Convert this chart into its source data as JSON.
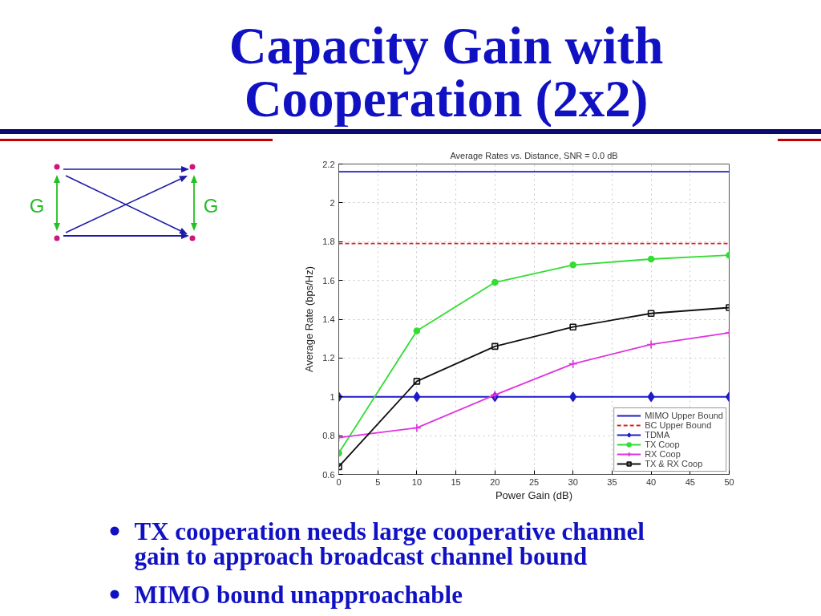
{
  "chart_data": {
    "type": "line",
    "title": "Capacity Gain with Cooperation (2x2)",
    "subtitle": "Average Rates vs. Distance, SNR = 0.0 dB",
    "xlabel": "Power Gain (dB)",
    "ylabel": "Average Rate (bps/Hz)",
    "x": [
      0,
      10,
      20,
      30,
      40,
      50
    ],
    "series": [
      {
        "name": "MIMO Upper Bound",
        "color": "#1c1cc8",
        "values": [
          2.16,
          2.16,
          2.16,
          2.16,
          2.16,
          2.16
        ],
        "marker": "none"
      },
      {
        "name": "BC Upper Bound",
        "color": "#e02020",
        "values": [
          1.79,
          1.79,
          1.79,
          1.79,
          1.79,
          1.79
        ],
        "marker": "none",
        "line_style": "dashed"
      },
      {
        "name": "TDMA",
        "color": "#1c1cc8",
        "values": [
          1,
          1,
          1,
          1,
          1,
          1
        ],
        "marker": "diamond"
      },
      {
        "name": "TX Coop",
        "color": "#33dd33",
        "values": [
          0.71,
          1.34,
          1.59,
          1.68,
          1.71,
          1.73
        ],
        "marker": "circle"
      },
      {
        "name": "RX Coop",
        "color": "#e033e0",
        "values": [
          0.79,
          0.84,
          1.01,
          1.17,
          1.27,
          1.33
        ],
        "marker": "cross"
      },
      {
        "name": "TX & RX Coop",
        "color": "#111111",
        "values": [
          0.64,
          1.08,
          1.26,
          1.36,
          1.43,
          1.46
        ],
        "marker": "square"
      }
    ],
    "xlim": [
      0,
      50
    ],
    "xticks": [
      0,
      5,
      10,
      15,
      20,
      25,
      30,
      35,
      40,
      45,
      50
    ],
    "ylim": [
      0.6,
      2.2
    ],
    "yticks": [
      0.6,
      0.8,
      1,
      1.2,
      1.4,
      1.6,
      1.8,
      2,
      2.2
    ],
    "grid": true,
    "legend": "bottom right",
    "line_style": "solid",
    "annotations": [
      "TX cooperation needs large cooperative channel gain to approach broadcast channel bound",
      "MIMO bound unapproachable",
      "G",
      "G"
    ]
  }
}
